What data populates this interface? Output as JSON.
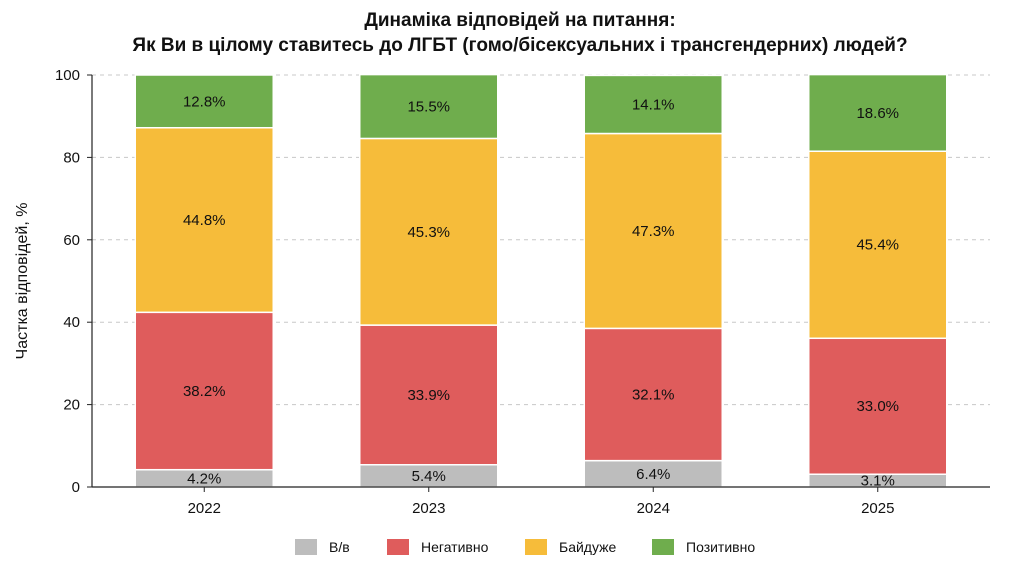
{
  "chart_data": {
    "type": "bar",
    "stacked": true,
    "title": "Динаміка відповідей на питання:",
    "subtitle": "Як Ви в цілому ставитесь до ЛГБТ (гомо/бісексуальних і трансгендерних) людей?",
    "xlabel": "",
    "ylabel": "Частка відповідей, %",
    "ylim": [
      0,
      100
    ],
    "yticks": [
      0,
      20,
      40,
      60,
      80,
      100
    ],
    "grid": true,
    "legend_position": "bottom",
    "categories": [
      "2022",
      "2023",
      "2024",
      "2025"
    ],
    "series": [
      {
        "name": "В/в",
        "color": "#bdbdbd",
        "values": [
          4.2,
          5.4,
          6.4,
          3.1
        ],
        "labels": [
          "4.2%",
          "5.4%",
          "6.4%",
          "3.1%"
        ]
      },
      {
        "name": "Негативно",
        "color": "#df5c5c",
        "values": [
          38.2,
          33.9,
          32.1,
          33.0
        ],
        "labels": [
          "38.2%",
          "33.9%",
          "32.1%",
          "33.0%"
        ]
      },
      {
        "name": "Байдуже",
        "color": "#f6bc3a",
        "values": [
          44.8,
          45.3,
          47.3,
          45.4
        ],
        "labels": [
          "44.8%",
          "45.3%",
          "47.3%",
          "45.4%"
        ]
      },
      {
        "name": "Позитивно",
        "color": "#6fad4d",
        "values": [
          12.8,
          15.5,
          14.1,
          18.6
        ],
        "labels": [
          "12.8%",
          "15.5%",
          "14.1%",
          "18.6%"
        ]
      }
    ]
  }
}
